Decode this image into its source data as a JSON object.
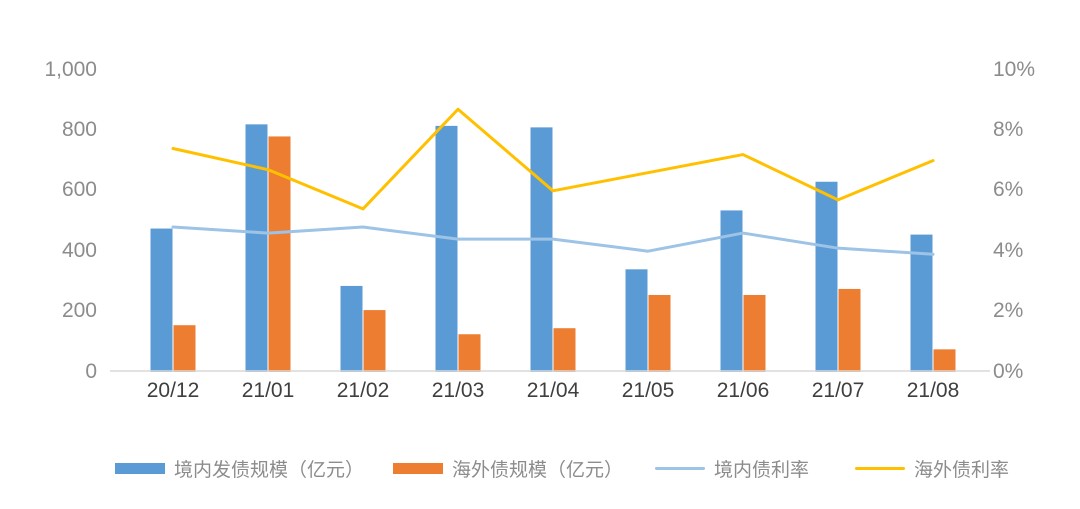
{
  "chart_data": {
    "type": "combo",
    "title": "",
    "categories": [
      "20/12",
      "21/01",
      "21/02",
      "21/03",
      "21/04",
      "21/05",
      "21/06",
      "21/07",
      "21/08"
    ],
    "series": [
      {
        "name": "境内发债规模（亿元）",
        "chart_type": "bar",
        "axis": "left",
        "color": "#5B9BD5",
        "values": [
          475,
          820,
          285,
          815,
          810,
          340,
          535,
          630,
          455
        ]
      },
      {
        "name": "海外债规模（亿元）",
        "chart_type": "bar",
        "axis": "left",
        "color": "#ED7D31",
        "values": [
          155,
          780,
          205,
          125,
          145,
          255,
          255,
          275,
          75
        ]
      },
      {
        "name": "境内债利率",
        "chart_type": "line",
        "axis": "right",
        "color": "#9DC3E6",
        "values": [
          4.8,
          4.6,
          4.8,
          4.4,
          4.4,
          4.0,
          4.6,
          4.1,
          3.9
        ]
      },
      {
        "name": "海外债利率",
        "chart_type": "line",
        "axis": "right",
        "color": "#FFC000",
        "values": [
          7.4,
          6.7,
          5.4,
          8.7,
          6.0,
          6.6,
          7.2,
          5.7,
          7.0
        ]
      }
    ],
    "left_axis": {
      "min": 0,
      "max": 1000,
      "tick_labels": [
        "0",
        "200",
        "400",
        "600",
        "800",
        "1,000"
      ]
    },
    "right_axis": {
      "min": 0,
      "max": 10,
      "unit": "%",
      "tick_labels": [
        "0%",
        "2%",
        "4%",
        "6%",
        "8%",
        "10%"
      ]
    },
    "grid": "off",
    "legend_position": "bottom",
    "legend": [
      "境内发债规模（亿元）",
      "海外债规模（亿元）",
      "境内债利率",
      "海外债利率"
    ]
  },
  "colors": {
    "axis_line": "#D9D9D9",
    "y_tick_text": "#8C8C8C",
    "x_tick_text": "#3F3F3F",
    "legend_text": "#8C8C8C"
  }
}
